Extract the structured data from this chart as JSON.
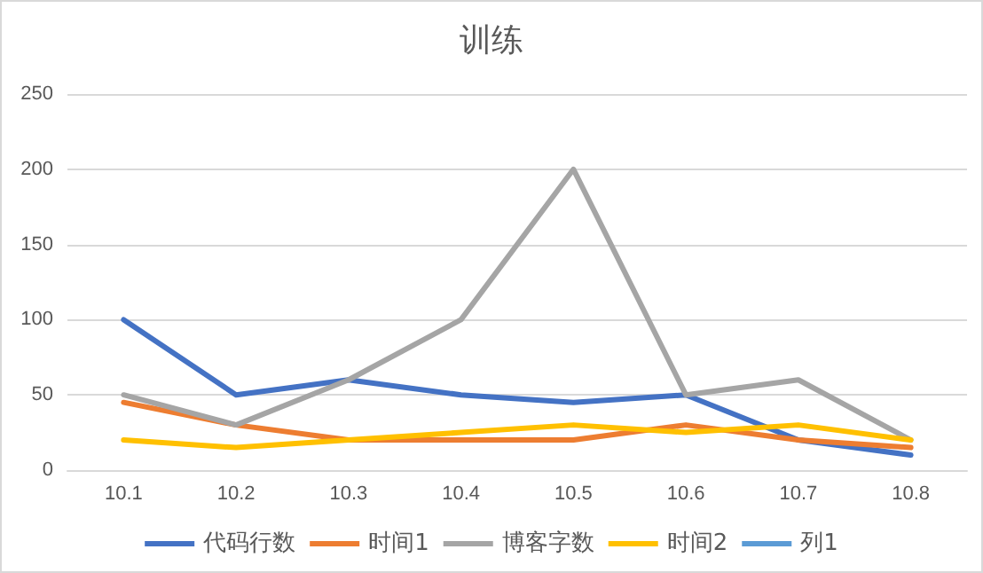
{
  "chart_data": {
    "type": "line",
    "title": "训练",
    "categories": [
      "10.1",
      "10.2",
      "10.3",
      "10.4",
      "10.5",
      "10.6",
      "10.7",
      "10.8"
    ],
    "series": [
      {
        "name": "代码行数",
        "color": "#4472c4",
        "values": [
          100,
          50,
          60,
          50,
          45,
          50,
          20,
          10
        ]
      },
      {
        "name": "时间1",
        "color": "#ed7d31",
        "values": [
          45,
          30,
          20,
          20,
          20,
          30,
          20,
          15
        ]
      },
      {
        "name": "博客字数",
        "color": "#a5a5a5",
        "values": [
          50,
          30,
          60,
          100,
          200,
          50,
          60,
          20
        ]
      },
      {
        "name": "时间2",
        "color": "#ffc000",
        "values": [
          20,
          15,
          20,
          25,
          30,
          25,
          30,
          20
        ]
      },
      {
        "name": "列1",
        "color": "#5b9bd5",
        "values": [
          null,
          null,
          null,
          null,
          null,
          null,
          null,
          null
        ]
      }
    ],
    "ylim": [
      0,
      250
    ],
    "yticks": [
      0,
      50,
      100,
      150,
      200,
      250
    ],
    "grid": "y",
    "legend": "bottom",
    "marker": "none",
    "line_style": "solid"
  }
}
